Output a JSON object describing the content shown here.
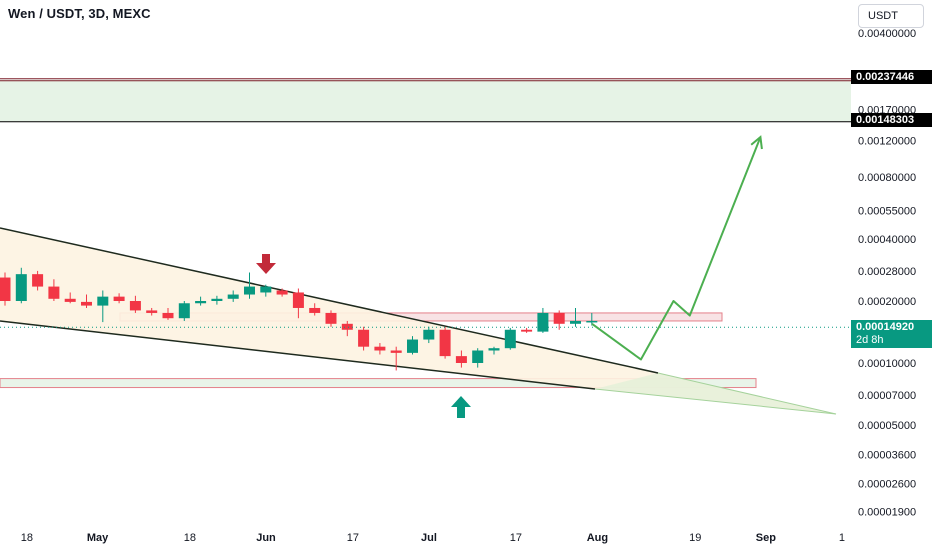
{
  "header": {
    "title": "Wen / USDT, 3D, MEXC",
    "currency_button": "USDT"
  },
  "price_tags": {
    "upper_zone_top": "0.00237446",
    "upper_zone_bottom": "0.00148303",
    "current_price": "0.00014920",
    "countdown": "2d 8h"
  },
  "colors": {
    "bull": "#089981",
    "bear": "#f23645",
    "projection": "#4caf50",
    "zone_fill": "#e6f3e6",
    "wedge_fill": "#fdf3e1"
  },
  "chart_data": {
    "type": "candlestick",
    "title": "Wen / USDT, 3D, MEXC",
    "scale": "log",
    "y_ticks": [
      "0.00400000",
      "0.00170000",
      "0.00120000",
      "0.00080000",
      "0.00055000",
      "0.00040000",
      "0.00028000",
      "0.00020000",
      "0.00010000",
      "0.00007000",
      "0.00005000",
      "0.00003600",
      "0.00002600",
      "0.00001900"
    ],
    "x_ticks": [
      "18",
      "May",
      "18",
      "Jun",
      "17",
      "Jul",
      "17",
      "Aug",
      "19",
      "Sep",
      "1"
    ],
    "bold_x_ticks": [
      "May",
      "Jun",
      "Jul",
      "Aug",
      "Sep"
    ],
    "ylim": [
      1.65e-05,
      0.0049
    ],
    "candles": [
      {
        "o": 0.00026,
        "h": 0.000275,
        "l": 0.00019,
        "c": 0.0002
      },
      {
        "o": 0.0002,
        "h": 0.00029,
        "l": 0.000195,
        "c": 0.00027
      },
      {
        "o": 0.00027,
        "h": 0.00028,
        "l": 0.000225,
        "c": 0.000235
      },
      {
        "o": 0.000235,
        "h": 0.000255,
        "l": 0.0002,
        "c": 0.000205
      },
      {
        "o": 0.000205,
        "h": 0.00022,
        "l": 0.000195,
        "c": 0.000198
      },
      {
        "o": 0.000198,
        "h": 0.000215,
        "l": 0.000185,
        "c": 0.00019
      },
      {
        "o": 0.00019,
        "h": 0.000225,
        "l": 0.000158,
        "c": 0.00021
      },
      {
        "o": 0.00021,
        "h": 0.000218,
        "l": 0.000195,
        "c": 0.0002
      },
      {
        "o": 0.0002,
        "h": 0.000212,
        "l": 0.000175,
        "c": 0.00018
      },
      {
        "o": 0.00018,
        "h": 0.000185,
        "l": 0.00017,
        "c": 0.000175
      },
      {
        "o": 0.000175,
        "h": 0.000185,
        "l": 0.000162,
        "c": 0.000165
      },
      {
        "o": 0.000165,
        "h": 0.0002,
        "l": 0.00016,
        "c": 0.000195
      },
      {
        "o": 0.000195,
        "h": 0.00021,
        "l": 0.00019,
        "c": 0.0002
      },
      {
        "o": 0.0002,
        "h": 0.000212,
        "l": 0.000192,
        "c": 0.000205
      },
      {
        "o": 0.000205,
        "h": 0.000225,
        "l": 0.000198,
        "c": 0.000215
      },
      {
        "o": 0.000215,
        "h": 0.000275,
        "l": 0.000205,
        "c": 0.000235
      },
      {
        "o": 0.00022,
        "h": 0.00024,
        "l": 0.00021,
        "c": 0.000235
      },
      {
        "o": 0.000225,
        "h": 0.00023,
        "l": 0.00021,
        "c": 0.000215
      },
      {
        "o": 0.00022,
        "h": 0.00023,
        "l": 0.000165,
        "c": 0.000185
      },
      {
        "o": 0.000185,
        "h": 0.000195,
        "l": 0.00017,
        "c": 0.000175
      },
      {
        "o": 0.000175,
        "h": 0.00018,
        "l": 0.00015,
        "c": 0.000155
      },
      {
        "o": 0.000155,
        "h": 0.00016,
        "l": 0.000135,
        "c": 0.000145
      },
      {
        "o": 0.000145,
        "h": 0.00015,
        "l": 0.000115,
        "c": 0.00012
      },
      {
        "o": 0.00012,
        "h": 0.000125,
        "l": 0.00011,
        "c": 0.000115
      },
      {
        "o": 0.000115,
        "h": 0.00012,
        "l": 9.2e-05,
        "c": 0.000112
      },
      {
        "o": 0.000112,
        "h": 0.000135,
        "l": 0.00011,
        "c": 0.00013
      },
      {
        "o": 0.00013,
        "h": 0.00015,
        "l": 0.000125,
        "c": 0.000145
      },
      {
        "o": 0.000145,
        "h": 0.00015,
        "l": 0.000105,
        "c": 0.000108
      },
      {
        "o": 0.000108,
        "h": 0.000115,
        "l": 9.5e-05,
        "c": 0.0001
      },
      {
        "o": 0.0001,
        "h": 0.000118,
        "l": 9.5e-05,
        "c": 0.000115
      },
      {
        "o": 0.000115,
        "h": 0.00012,
        "l": 0.00011,
        "c": 0.000118
      },
      {
        "o": 0.000118,
        "h": 0.000148,
        "l": 0.000116,
        "c": 0.000145
      },
      {
        "o": 0.000145,
        "h": 0.000148,
        "l": 0.00014,
        "c": 0.000142
      },
      {
        "o": 0.000142,
        "h": 0.000185,
        "l": 0.00014,
        "c": 0.000175
      },
      {
        "o": 0.000175,
        "h": 0.00018,
        "l": 0.000145,
        "c": 0.000155
      },
      {
        "o": 0.000155,
        "h": 0.000185,
        "l": 0.00015,
        "c": 0.00016
      },
      {
        "o": 0.000158,
        "h": 0.000175,
        "l": 0.000152,
        "c": 0.00016
      }
    ],
    "current_price": 0.0001492,
    "upper_zone": [
      0.00148303,
      0.00237446
    ],
    "resistance_zone": [
      0.00016,
      0.000175
    ],
    "support_zone": [
      7.6e-05,
      8.4e-05
    ],
    "projection_path": [
      {
        "date": "2024-07-31",
        "price": 0.000155
      },
      {
        "date": "2024-08-09",
        "price": 0.000104
      },
      {
        "date": "2024-08-15",
        "price": 0.0002
      },
      {
        "date": "2024-08-18",
        "price": 0.00017
      },
      {
        "date": "2024-08-31",
        "price": 0.00125
      }
    ],
    "annotations": [
      "bearish-arrow",
      "bullish-arrow"
    ]
  }
}
